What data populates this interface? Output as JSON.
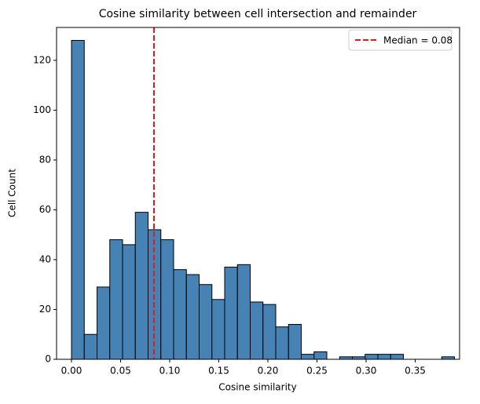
{
  "chart_data": {
    "type": "histogram",
    "title": "Cosine similarity between cell intersection and remainder",
    "x_label": "Cosine similarity",
    "y_label": "Cell Count",
    "bins": [
      0,
      0.013,
      0.026,
      0.039,
      0.052,
      0.065,
      0.078,
      0.091,
      0.104,
      0.117,
      0.13,
      0.143,
      0.156,
      0.169,
      0.182,
      0.195,
      0.208,
      0.221,
      0.234,
      0.247,
      0.26,
      0.273,
      0.286,
      0.299,
      0.312,
      0.325,
      0.338,
      0.351,
      0.364,
      0.377,
      0.39
    ],
    "counts": [
      128,
      10,
      29,
      48,
      46,
      59,
      52,
      48,
      36,
      34,
      30,
      24,
      37,
      38,
      23,
      22,
      13,
      14,
      2,
      3,
      0,
      1,
      1,
      2,
      2,
      2,
      0,
      0,
      0,
      1
    ],
    "color": "#4682b4",
    "edgecolor": "#000000",
    "xlim": [
      -0.0152,
      0.3952
    ],
    "xticks": [
      {
        "value": 0,
        "label": "0.00"
      },
      0.05,
      {
        "value": 0.1,
        "label": "0.10"
      },
      0.15,
      {
        "value": 0.2,
        "label": "0.20"
      },
      0.25,
      {
        "value": 0.3,
        "label": "0.30"
      },
      0.35
    ],
    "ylim": [
      0,
      133.2
    ],
    "yticks": [
      0,
      20,
      40,
      60,
      80,
      100,
      120
    ],
    "median_line": {
      "name": "Median = 0.08",
      "value": 0.084,
      "color": "#e31a1c"
    },
    "legend": "upper right"
  }
}
